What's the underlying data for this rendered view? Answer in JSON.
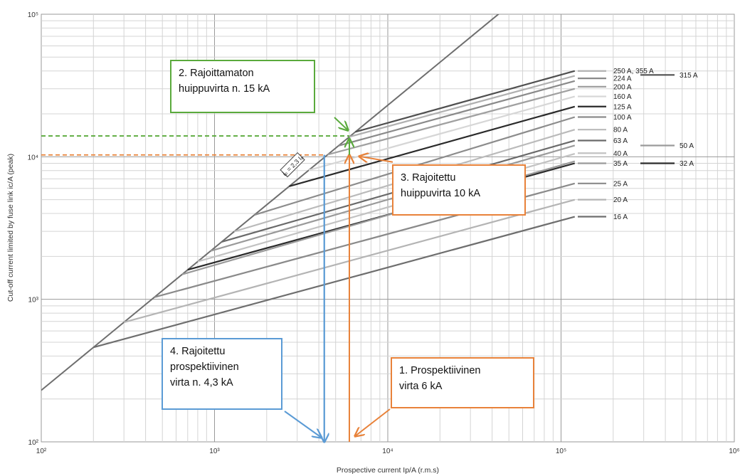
{
  "chart_data": {
    "type": "line",
    "xlabel": "Prospective current Ip/A (r.m.s)",
    "ylabel": "Cut-off current limited by fuse link ic/A (peak)",
    "x_scale": "log",
    "y_scale": "log",
    "xlim": [
      100,
      1000000
    ],
    "ylim": [
      100,
      100000
    ],
    "x_ticks": [
      {
        "value": 100,
        "label": "10²"
      },
      {
        "value": 1000,
        "label": "10³"
      },
      {
        "value": 10000,
        "label": "10⁴"
      },
      {
        "value": 100000,
        "label": "10⁵"
      },
      {
        "value": 1000000,
        "label": "10⁶"
      }
    ],
    "y_ticks": [
      {
        "value": 100,
        "label": "10²"
      },
      {
        "value": 1000,
        "label": "10³"
      },
      {
        "value": 10000,
        "label": "10⁴"
      },
      {
        "value": 100000,
        "label": "10⁵"
      }
    ],
    "grid": true,
    "unlimited_line": {
      "label": "iₚ = 2,3 Iₚ",
      "color": "#6e6e6e",
      "factor": 2.3
    },
    "series": [
      {
        "name": "16 A",
        "x_start": 200,
        "x_end": 120000,
        "y_end": 3800,
        "color": "#6e6e6e"
      },
      {
        "name": "20 A",
        "x_start": 300,
        "x_end": 120000,
        "y_end": 5000,
        "color": "#b4b4b4"
      },
      {
        "name": "25 A",
        "x_start": 450,
        "x_end": 120000,
        "y_end": 6500,
        "color": "#8a8a8a"
      },
      {
        "name": "32 A",
        "x_start": 700,
        "x_end": 120000,
        "y_end": 9000,
        "color": "#2a2a2a"
      },
      {
        "name": "35 A",
        "x_start": 650,
        "x_end": 120000,
        "y_end": 9300,
        "color": "#9a9a9a"
      },
      {
        "name": "40 A",
        "x_start": 800,
        "x_end": 120000,
        "y_end": 10500,
        "color": "#c2c2c2"
      },
      {
        "name": "50 A",
        "x_start": 950,
        "x_end": 120000,
        "y_end": 12000,
        "color": "#9a9a9a"
      },
      {
        "name": "63 A",
        "x_start": 1100,
        "x_end": 120000,
        "y_end": 13000,
        "color": "#6a6a6a"
      },
      {
        "name": "80 A",
        "x_start": 1300,
        "x_end": 120000,
        "y_end": 15500,
        "color": "#bababa"
      },
      {
        "name": "100 A",
        "x_start": 1700,
        "x_end": 120000,
        "y_end": 19000,
        "color": "#8c8c8c"
      },
      {
        "name": "125 A",
        "x_start": 2700,
        "x_end": 120000,
        "y_end": 22500,
        "color": "#2a2a2a"
      },
      {
        "name": "160 A",
        "x_start": 3500,
        "x_end": 120000,
        "y_end": 26500,
        "color": "#d6d6d6"
      },
      {
        "name": "200 A",
        "x_start": 4500,
        "x_end": 120000,
        "y_end": 30000,
        "color": "#a0a0a0"
      },
      {
        "name": "224 A",
        "x_start": 5200,
        "x_end": 120000,
        "y_end": 34000,
        "color": "#8a8a8a"
      },
      {
        "name": "250 A, 355 A",
        "x_start": 6000,
        "x_end": 120000,
        "y_end": 37000,
        "color": "#b0b0b0"
      },
      {
        "name": "315 A",
        "x_start": 6500,
        "x_end": 120000,
        "y_end": 40000,
        "color": "#505050"
      }
    ],
    "labels": [
      {
        "text": "250 A, 355 A",
        "y": 40000,
        "col": 1
      },
      {
        "text": "224 A",
        "y": 35500,
        "col": 1
      },
      {
        "text": "200 A",
        "y": 31000,
        "col": 1
      },
      {
        "text": "160 A",
        "y": 26500,
        "col": 1
      },
      {
        "text": "125 A",
        "y": 22500,
        "col": 1
      },
      {
        "text": "100 A",
        "y": 19000,
        "col": 1
      },
      {
        "text": "80 A",
        "y": 15500,
        "col": 1
      },
      {
        "text": "63 A",
        "y": 13000,
        "col": 1
      },
      {
        "text": "40 A",
        "y": 10600,
        "col": 1
      },
      {
        "text": "35 A",
        "y": 9000,
        "col": 1
      },
      {
        "text": "25 A",
        "y": 6500,
        "col": 1
      },
      {
        "text": "20 A",
        "y": 5000,
        "col": 1
      },
      {
        "text": "16 A",
        "y": 3800,
        "col": 1
      },
      {
        "text": "315 A",
        "y": 37500,
        "col": 2
      },
      {
        "text": "50 A",
        "y": 12000,
        "col": 2
      },
      {
        "text": "32 A",
        "y": 9000,
        "col": 2
      }
    ],
    "reference_lines": [
      {
        "name": "unlimited",
        "color": "#5aaa3c",
        "y": 14000,
        "x_to": 6000
      },
      {
        "name": "limited",
        "color": "#e8823a",
        "y": 10300,
        "x_to": 4300
      },
      {
        "name": "prospective",
        "color": "#e8823a",
        "x": 6000,
        "y_to": 10300
      },
      {
        "name": "limited-prospective",
        "color": "#5b9bd5",
        "x": 4300,
        "y_to": 10300
      }
    ],
    "annotations": [
      {
        "key": "unlimited",
        "lines": [
          "2. Rajoittamaton",
          "huippuvirta n. 15 kA"
        ],
        "border": "#5aaa3c"
      },
      {
        "key": "limited",
        "lines": [
          "3. Rajoitettu",
          "huippuvirta 10 kA"
        ],
        "border": "#e8823a"
      },
      {
        "key": "limited-prospective",
        "lines": [
          "4. Rajoitettu",
          "prospektiivinen",
          "virta n. 4,3 kA"
        ],
        "border": "#5b9bd5"
      },
      {
        "key": "prospective",
        "lines": [
          "1. Prospektiivinen",
          "virta 6 kA"
        ],
        "border": "#e8823a"
      }
    ]
  }
}
